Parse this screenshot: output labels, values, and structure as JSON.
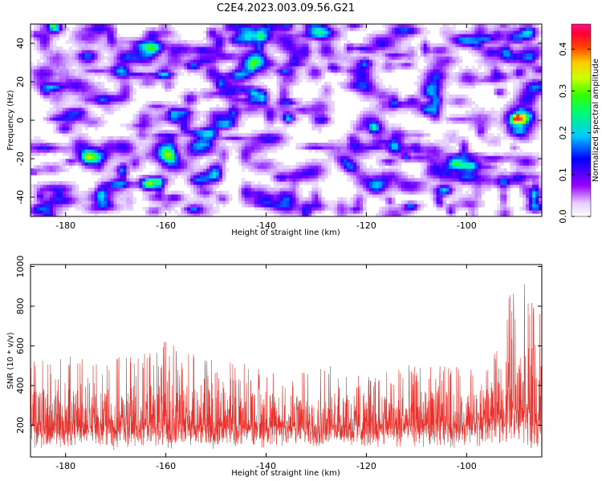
{
  "title": "C2E4.2023.003.09.56.G21",
  "chart_data": [
    {
      "type": "heatmap",
      "xlabel": "Height of straight line (km)",
      "ylabel": "Frequency (Hz)",
      "xlim": [
        -187,
        -85
      ],
      "ylim": [
        -50,
        50
      ],
      "xticks": [
        -180,
        -160,
        -140,
        -120,
        -100
      ],
      "yticks": [
        -40,
        -20,
        0,
        20,
        40
      ],
      "colorbar": {
        "label": "Normalized spectral amplitude",
        "range": [
          0,
          0.46
        ],
        "ticks": [
          "0.0",
          "0.1",
          "0.2",
          "0.3",
          "0.4"
        ],
        "colormap": "rainbow (white, violet, blue, cyan, green, yellow, orange, red, pink)"
      },
      "features": [
        {
          "description": "localized peak",
          "x_range": [
            -92,
            -86
          ],
          "y_range": [
            -6,
            8
          ],
          "amplitude": 0.33
        },
        {
          "description": "background noise",
          "amplitude_range": [
            0.0,
            0.12
          ]
        }
      ]
    },
    {
      "type": "line",
      "xlabel": "Height of straight line (km)",
      "ylabel": "SNR (10 * v/v)",
      "xlim": [
        -187,
        -85
      ],
      "ylim": [
        40,
        1010
      ],
      "xticks": [
        -180,
        -160,
        -140,
        -120,
        -100
      ],
      "yticks": [
        200,
        400,
        600,
        800,
        1000
      ],
      "series": [
        {
          "color": "#e8322d",
          "x": [
            -187,
            -180,
            -175,
            -170,
            -165,
            -161,
            -160,
            -155,
            -150,
            -145,
            -140,
            -135,
            -130,
            -125,
            -120,
            -115,
            -110,
            -105,
            -100,
            -96,
            -93,
            -91,
            -90,
            -89,
            -88,
            -87,
            -86,
            -85
          ],
          "envelope_max": [
            540,
            560,
            520,
            540,
            560,
            580,
            660,
            560,
            560,
            520,
            500,
            480,
            500,
            500,
            480,
            490,
            510,
            520,
            480,
            520,
            600,
            980,
            760,
            1000,
            950,
            900,
            700,
            820
          ],
          "envelope_min": [
            70,
            80,
            90,
            70,
            80,
            90,
            80,
            90,
            70,
            80,
            80,
            90,
            80,
            90,
            80,
            80,
            80,
            80,
            80,
            90,
            100,
            120,
            110,
            90,
            80,
            60,
            40,
            60
          ],
          "typical": [
            200,
            200,
            195,
            200,
            205,
            205,
            205,
            200,
            200,
            195,
            195,
            195,
            200,
            200,
            195,
            200,
            200,
            205,
            205,
            220,
            260,
            300,
            280,
            300,
            290,
            260,
            230,
            250
          ]
        }
      ]
    }
  ]
}
